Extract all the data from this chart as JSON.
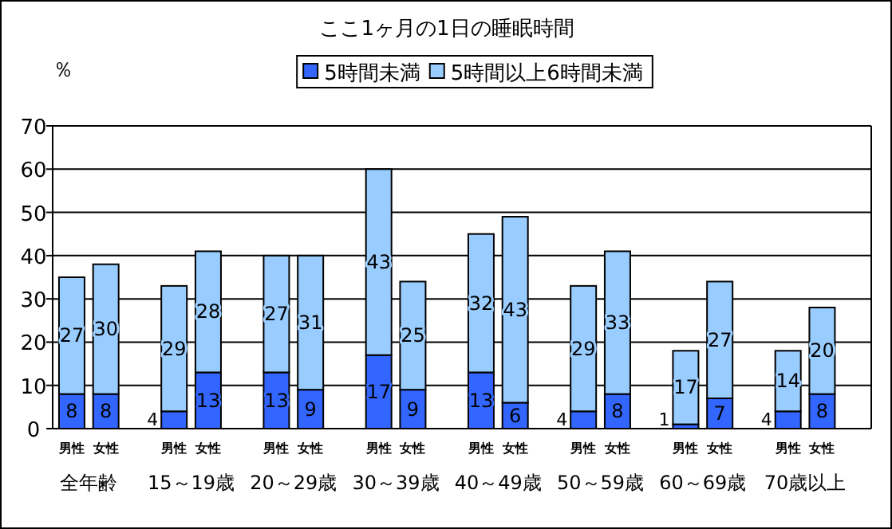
{
  "chart_data": {
    "type": "bar",
    "title": "ここ1ヶ月の1日の睡眠時間",
    "ylabel": "％",
    "categories": [
      "男性",
      "女性",
      "男性",
      "女性",
      "男性",
      "女性",
      "男性",
      "女性",
      "男性",
      "女性",
      "男性",
      "女性",
      "男性",
      "女性",
      "男性",
      "女性"
    ],
    "annotations": [
      "全年齢",
      "15～19歳",
      "20～29歳",
      "30～39歳",
      "40～49歳",
      "50～59歳",
      "60～69歳",
      "70歳以上"
    ],
    "series": [
      {
        "name": "5時間未満",
        "color": "#3366ff",
        "values": [
          8,
          8,
          4,
          13,
          13,
          9,
          17,
          9,
          13,
          6,
          4,
          8,
          1,
          7,
          4,
          8
        ]
      },
      {
        "name": "5時間以上6時間未満",
        "color": "#99ccff",
        "values": [
          27,
          30,
          29,
          28,
          27,
          31,
          43,
          25,
          32,
          43,
          29,
          33,
          17,
          27,
          14,
          20
        ]
      }
    ],
    "stacked": true,
    "data_labels": true,
    "ylim": [
      0,
      70
    ],
    "yticks": [
      0,
      10,
      20,
      30,
      40,
      50,
      60,
      70
    ],
    "grid": "y",
    "legend": "top"
  }
}
